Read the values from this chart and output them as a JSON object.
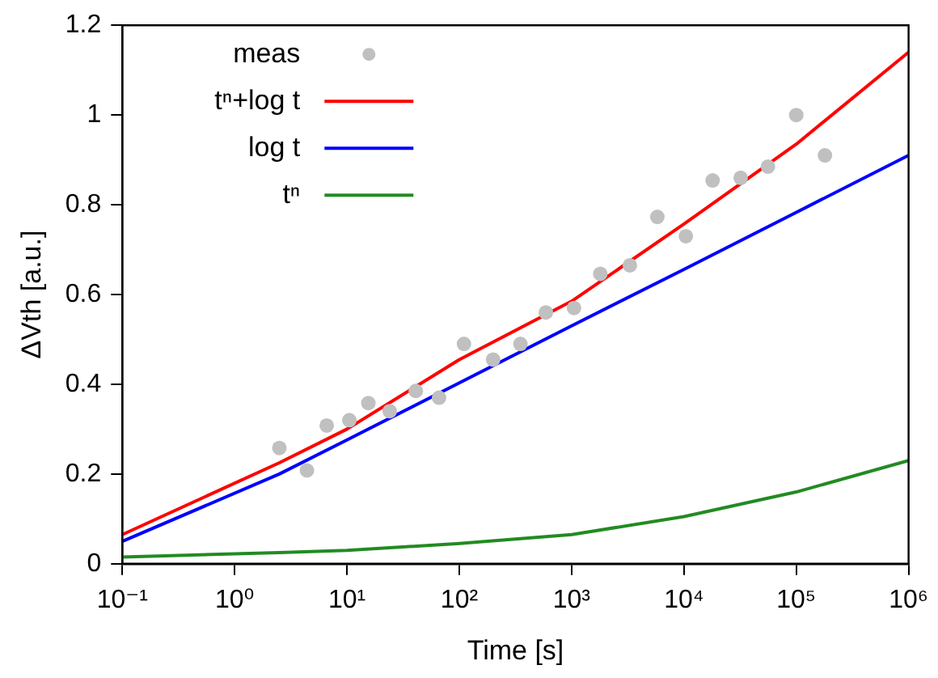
{
  "chart_data": {
    "type": "line",
    "xlabel": "Time [s]",
    "ylabel": "ΔVth [a.u.]",
    "log": "x",
    "xlim": [
      0.1,
      1000000
    ],
    "ylim": [
      0,
      1.2
    ],
    "xticks": [
      {
        "value": 0.1,
        "label": "10⁻¹"
      },
      {
        "value": 1,
        "label": "10⁰"
      },
      {
        "value": 10,
        "label": "10¹"
      },
      {
        "value": 100,
        "label": "10²"
      },
      {
        "value": 1000,
        "label": "10³"
      },
      {
        "value": 10000,
        "label": "10⁴"
      },
      {
        "value": 100000,
        "label": "10⁵"
      },
      {
        "value": 1000000,
        "label": "10⁶"
      }
    ],
    "yticks": [
      0,
      {
        "value": 0.2,
        "label": "0.2"
      },
      {
        "value": 0.4,
        "label": "0.4"
      },
      {
        "value": 0.6,
        "label": "0.6"
      },
      {
        "value": 0.8,
        "label": "0.8"
      },
      1,
      {
        "value": 1.2,
        "label": "1.2"
      }
    ],
    "grid": false,
    "legend": "top left",
    "series": [
      {
        "name": "meas",
        "type": "scatter",
        "marker": "circle",
        "color": "#c0c0c0",
        "x": [
          2.5,
          4.4,
          6.6,
          10.5,
          15.5,
          24,
          41,
          66,
          110,
          200,
          350,
          590,
          1050,
          1800,
          3300,
          5800,
          10400,
          18000,
          32000,
          56000,
          100000,
          180000
        ],
        "values": [
          0.258,
          0.208,
          0.308,
          0.32,
          0.358,
          0.34,
          0.385,
          0.37,
          0.49,
          0.455,
          0.49,
          0.56,
          0.57,
          0.646,
          0.665,
          0.773,
          0.73,
          0.854,
          0.86,
          0.885,
          1.0,
          0.91
        ]
      },
      {
        "name": "tⁿ+log t",
        "type": "line",
        "marker": "none",
        "color": "#ff0000",
        "x": [
          0.1,
          2.5,
          10,
          100,
          1000,
          10000,
          100000,
          1000000
        ],
        "values": [
          0.065,
          0.225,
          0.3,
          0.455,
          0.585,
          0.757,
          0.935,
          1.14
        ]
      },
      {
        "name": "log t",
        "type": "line",
        "marker": "none",
        "color": "#0000ff",
        "x": [
          0.1,
          2.5,
          10,
          100,
          1000,
          10000,
          100000,
          1000000
        ],
        "values": [
          0.05,
          0.2,
          0.276,
          0.403,
          0.53,
          0.656,
          0.783,
          0.91
        ]
      },
      {
        "name": "tⁿ",
        "type": "line",
        "marker": "none",
        "color": "#228b22",
        "x": [
          0.1,
          2.5,
          10,
          100,
          1000,
          10000,
          100000,
          1000000
        ],
        "values": [
          0.015,
          0.025,
          0.03,
          0.045,
          0.065,
          0.105,
          0.16,
          0.23
        ]
      }
    ]
  }
}
